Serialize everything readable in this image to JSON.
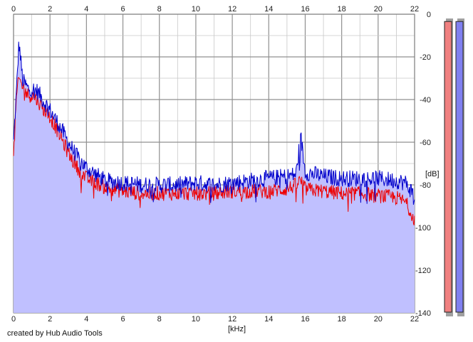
{
  "footer": {
    "credit": "created by Hub Audio Tools"
  },
  "colors": {
    "fill": "#c0c0ff",
    "left_channel": "#ee0000",
    "right_channel": "#0000cc",
    "meter_left": "#f08080",
    "meter_right": "#8080f0",
    "grid": "#a8a8a8"
  },
  "chart_data": {
    "type": "line",
    "title": "",
    "xlabel": "[kHz]",
    "ylabel": "[dB]",
    "xlim": [
      0,
      22
    ],
    "ylim": [
      -140,
      0
    ],
    "x_ticks": [
      "0",
      "2",
      "4",
      "6",
      "8",
      "10",
      "12",
      "14",
      "16",
      "18",
      "20",
      "22"
    ],
    "y_ticks": [
      "0",
      "-20",
      "-40",
      "-60",
      "-80",
      "-100",
      "-120",
      "-140"
    ],
    "grid": true,
    "x": [
      0.0,
      0.15,
      0.3,
      0.5,
      0.8,
      1.0,
      1.3,
      1.6,
      2.0,
      2.5,
      3.0,
      3.5,
      4.0,
      4.5,
      5.0,
      6.0,
      7.0,
      8.0,
      9.0,
      10.0,
      11.0,
      12.0,
      13.0,
      14.0,
      15.0,
      15.5,
      15.75,
      16.0,
      17.0,
      18.0,
      19.0,
      20.0,
      21.0,
      21.5,
      22.0
    ],
    "series": [
      {
        "values": [
          -60,
          -38,
          -13,
          -31,
          -35,
          -35,
          -36,
          -40,
          -45,
          -52,
          -60,
          -67,
          -72,
          -75,
          -78,
          -79,
          -80,
          -80,
          -80,
          -79,
          -80,
          -79,
          -78,
          -77,
          -76,
          -75,
          -57,
          -74,
          -76,
          -77,
          -77,
          -77,
          -78,
          -79,
          -85
        ]
      },
      {
        "values": [
          -68,
          -40,
          -30,
          -34,
          -38,
          -38,
          -40,
          -44,
          -48,
          -56,
          -65,
          -72,
          -77,
          -79,
          -81,
          -83,
          -84,
          -84,
          -84,
          -84,
          -84,
          -83,
          -83,
          -83,
          -82,
          -80,
          -78,
          -82,
          -83,
          -84,
          -84,
          -85,
          -86,
          -88,
          -96
        ]
      }
    ],
    "level_meters": [
      {
        "level": 0.985
      },
      {
        "level": 0.985
      }
    ]
  }
}
